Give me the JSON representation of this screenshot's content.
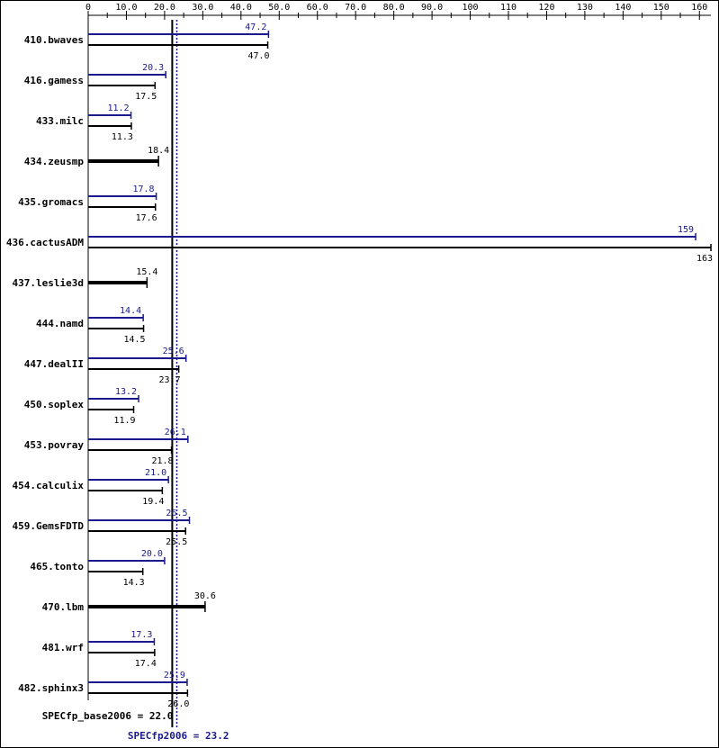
{
  "chart_data": {
    "type": "bar",
    "orientation": "horizontal",
    "x_ticks": [
      0,
      10.0,
      20.0,
      30.0,
      40.0,
      50.0,
      60.0,
      70.0,
      80.0,
      90.0,
      100,
      110,
      120,
      130,
      140,
      150,
      160
    ],
    "tick_labels": [
      "0",
      "10.0",
      "20.0",
      "30.0",
      "40.0",
      "50.0",
      "60.0",
      "70.0",
      "80.0",
      "90.0",
      "100",
      "110",
      "120",
      "130",
      "140",
      "150",
      "160"
    ],
    "xlim": [
      0,
      163
    ],
    "categories": [
      "410.bwaves",
      "416.gamess",
      "433.milc",
      "434.zeusmp",
      "435.gromacs",
      "436.cactusADM",
      "437.leslie3d",
      "444.namd",
      "447.dealII",
      "450.soplex",
      "453.povray",
      "454.calculix",
      "459.GemsFDTD",
      "465.tonto",
      "470.lbm",
      "481.wrf",
      "482.sphinx3"
    ],
    "series": [
      {
        "key": "peak",
        "values": [
          47.2,
          20.3,
          11.2,
          null,
          17.8,
          159,
          null,
          14.4,
          25.6,
          13.2,
          26.1,
          21.0,
          26.5,
          20.0,
          null,
          17.3,
          25.9
        ],
        "labels": [
          "47.2",
          "20.3",
          "11.2",
          "",
          "17.8",
          "159",
          "",
          "14.4",
          "25.6",
          "13.2",
          "26.1",
          "21.0",
          "26.5",
          "20.0",
          "",
          "17.3",
          "25.9"
        ],
        "color": "#1a1a8c"
      },
      {
        "key": "base",
        "values": [
          47.0,
          17.5,
          11.3,
          18.4,
          17.6,
          163,
          15.4,
          14.5,
          23.7,
          11.9,
          21.8,
          19.4,
          25.5,
          14.3,
          30.6,
          17.4,
          26.0
        ],
        "labels": [
          "47.0",
          "17.5",
          "11.3",
          "18.4",
          "17.6",
          "163",
          "15.4",
          "14.5",
          "23.7",
          "11.9",
          "21.8",
          "19.4",
          "25.5",
          "14.3",
          "30.6",
          "17.4",
          "26.0"
        ],
        "color": "#000000"
      }
    ],
    "reference_lines": [
      {
        "key": "base",
        "value": 22.0,
        "label": "SPECfp_base2006 = 22.0",
        "style": "solid",
        "color": "#000000"
      },
      {
        "key": "peak",
        "value": 23.2,
        "label": "SPECfp2006 = 23.2",
        "style": "dotted",
        "color": "#1a1a8c"
      }
    ],
    "grid": false,
    "legend": "none"
  }
}
